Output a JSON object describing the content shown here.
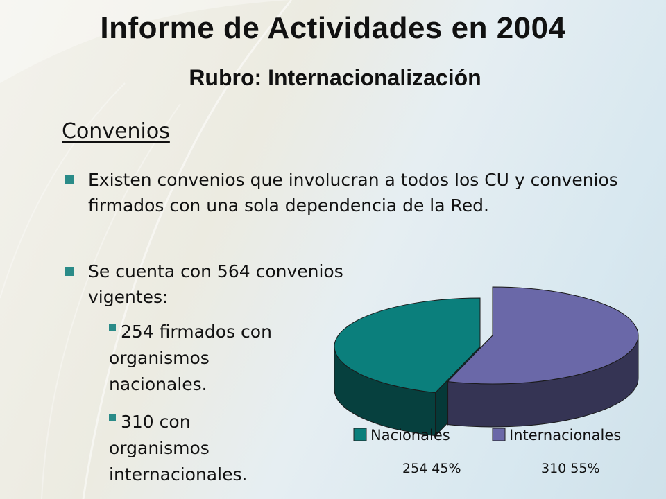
{
  "title": "Informe de Actividades en 2004",
  "subtitle": "Rubro: Internacionalización",
  "section_heading": "Convenios",
  "bullets": [
    "Existen convenios que involucran a todos los CU y convenios firmados con una sola dependencia de la Red.",
    "Se cuenta con 564 convenios vigentes:"
  ],
  "sub_bullets": [
    "254 firmados con organismos nacionales.",
    "310 con organismos internacionales."
  ],
  "colors": {
    "nacionales": "#0b7f7c",
    "internacionales": "#6a68a8",
    "bullet": "#2a8b88"
  },
  "chart_data": {
    "type": "pie",
    "style": "3d-exploded",
    "categories": [
      "Nacionales",
      "Internacionales"
    ],
    "values": [
      254,
      310
    ],
    "percent_labels": [
      "254 45%",
      "310 55%"
    ],
    "legend": "bottom"
  }
}
